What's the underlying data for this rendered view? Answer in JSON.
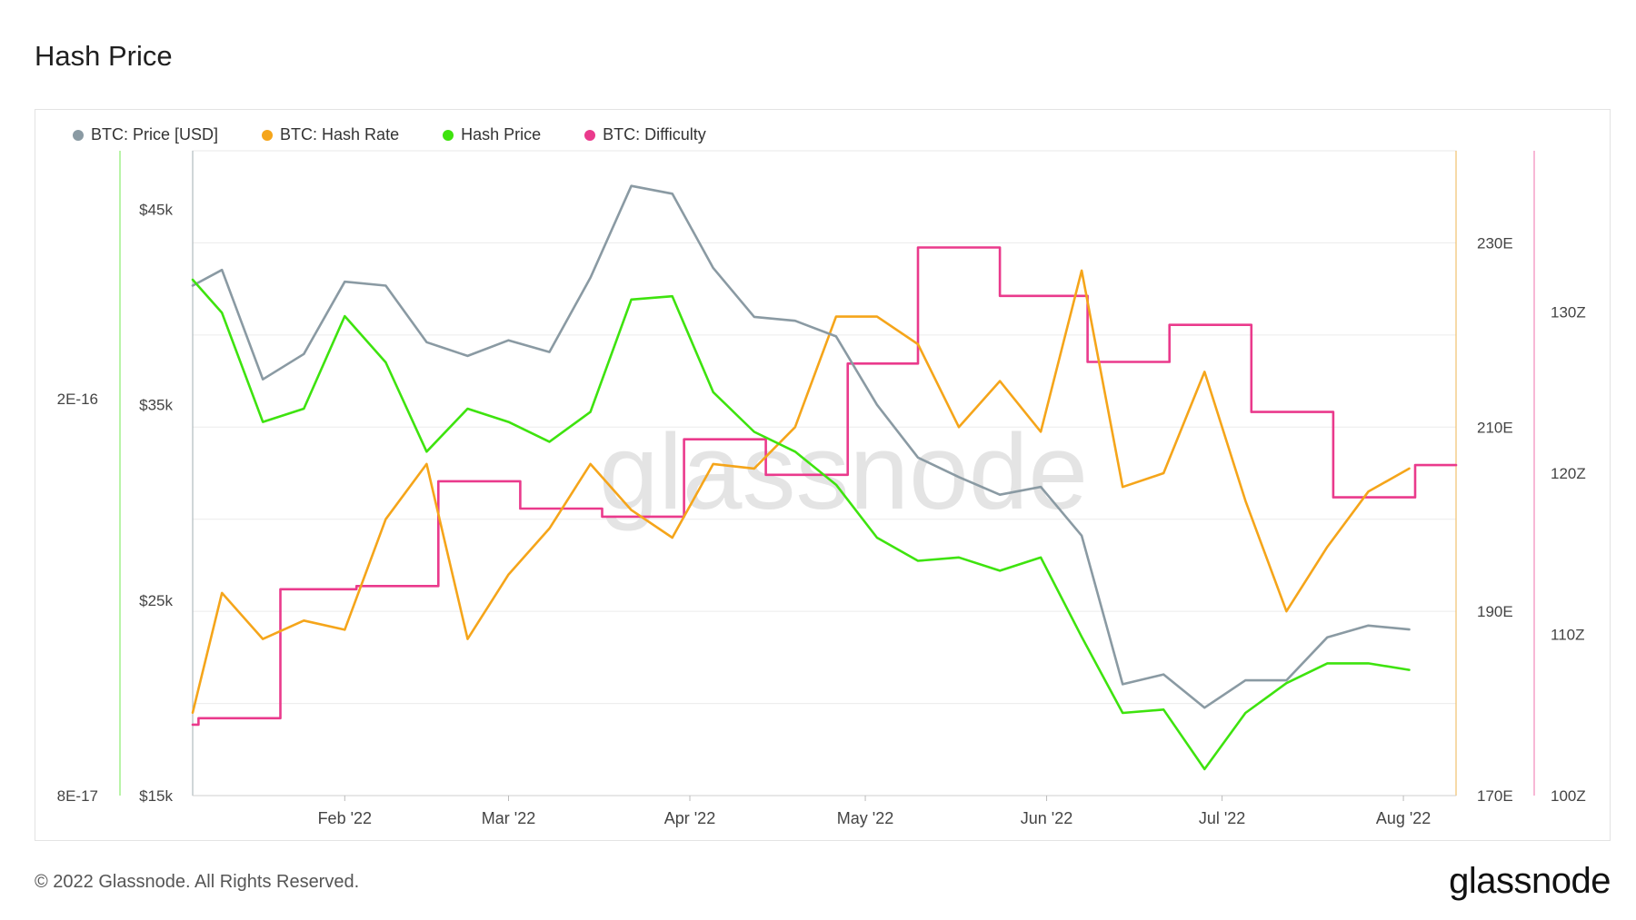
{
  "page": {
    "title": "Hash Price",
    "copyright": "© 2022 Glassnode. All Rights Reserved.",
    "logo": "glassnode",
    "watermark": "glassnode"
  },
  "chart_data": {
    "type": "line",
    "title": "Hash Price",
    "legend_position": "top-left",
    "grid": true,
    "x_ticks": [
      "Feb '22",
      "Mar '22",
      "Apr '22",
      "May '22",
      "Jun '22",
      "Jul '22",
      "Aug '22"
    ],
    "x_tick_dates": [
      "2022-02-01",
      "2022-03-01",
      "2022-04-01",
      "2022-05-01",
      "2022-06-01",
      "2022-07-01",
      "2022-08-01"
    ],
    "xlim": [
      "2022-01-06",
      "2022-08-10"
    ],
    "axes": {
      "price": {
        "ticks": [
          "$15k",
          "$25k",
          "$35k",
          "$45k"
        ],
        "tick_values": [
          15000,
          25000,
          35000,
          45000
        ],
        "range": [
          15000,
          48000
        ],
        "color": "#8a9aa3"
      },
      "hash_price": {
        "ticks": [
          "8E-17",
          "2E-16"
        ],
        "tick_values": [
          8e-17,
          2e-16
        ],
        "range": [
          8e-17,
          2.75e-16
        ],
        "color": "#3ee30e"
      },
      "hash_rate": {
        "ticks": [
          "170E",
          "190E",
          "210E",
          "230E"
        ],
        "tick_values": [
          170,
          190,
          210,
          230
        ],
        "range": [
          170,
          240
        ],
        "color": "#f5a51a"
      },
      "difficulty": {
        "ticks": [
          "100Z",
          "110Z",
          "120Z",
          "130Z"
        ],
        "tick_values": [
          100,
          110,
          120,
          130
        ],
        "range": [
          100,
          140
        ],
        "color": "#ea3a8c"
      }
    },
    "series": [
      {
        "name": "BTC: Price [USD]",
        "color": "#8a9aa3",
        "axis": "price",
        "step": false,
        "x": [
          "2022-01-06",
          "2022-01-11",
          "2022-01-18",
          "2022-01-25",
          "2022-02-01",
          "2022-02-08",
          "2022-02-15",
          "2022-02-22",
          "2022-03-01",
          "2022-03-08",
          "2022-03-15",
          "2022-03-22",
          "2022-03-29",
          "2022-04-05",
          "2022-04-12",
          "2022-04-19",
          "2022-04-26",
          "2022-05-03",
          "2022-05-10",
          "2022-05-17",
          "2022-05-24",
          "2022-05-31",
          "2022-06-07",
          "2022-06-14",
          "2022-06-21",
          "2022-06-28",
          "2022-07-05",
          "2022-07-12",
          "2022-07-19",
          "2022-07-26",
          "2022-08-02"
        ],
        "values": [
          41100,
          41900,
          36300,
          37600,
          41300,
          41100,
          38200,
          37500,
          38300,
          37700,
          41500,
          46200,
          45800,
          42000,
          39500,
          39300,
          38500,
          35000,
          32300,
          31300,
          30400,
          30800,
          28300,
          20700,
          21200,
          19500,
          20900,
          20900,
          23100,
          23700,
          23500
        ]
      },
      {
        "name": "BTC: Hash Rate",
        "color": "#f5a51a",
        "axis": "hash_rate",
        "step": false,
        "x": [
          "2022-01-06",
          "2022-01-11",
          "2022-01-18",
          "2022-01-25",
          "2022-02-01",
          "2022-02-08",
          "2022-02-15",
          "2022-02-22",
          "2022-03-01",
          "2022-03-08",
          "2022-03-15",
          "2022-03-22",
          "2022-03-29",
          "2022-04-05",
          "2022-04-12",
          "2022-04-19",
          "2022-04-26",
          "2022-05-03",
          "2022-05-10",
          "2022-05-17",
          "2022-05-24",
          "2022-05-31",
          "2022-06-07",
          "2022-06-14",
          "2022-06-21",
          "2022-06-28",
          "2022-07-05",
          "2022-07-12",
          "2022-07-19",
          "2022-07-26",
          "2022-08-02"
        ],
        "values": [
          179,
          192,
          187,
          189,
          188,
          200,
          206,
          187,
          194,
          199,
          206,
          201,
          198,
          206,
          205.5,
          210,
          222,
          222,
          219,
          210,
          215,
          209.5,
          227,
          203.5,
          205,
          216,
          202,
          190,
          197,
          203,
          205.5
        ]
      },
      {
        "name": "Hash Price",
        "color": "#3ee30e",
        "axis": "hash_price",
        "step": false,
        "x": [
          "2022-01-06",
          "2022-01-11",
          "2022-01-18",
          "2022-01-25",
          "2022-02-01",
          "2022-02-08",
          "2022-02-15",
          "2022-02-22",
          "2022-03-01",
          "2022-03-08",
          "2022-03-15",
          "2022-03-22",
          "2022-03-29",
          "2022-04-05",
          "2022-04-12",
          "2022-04-19",
          "2022-04-26",
          "2022-05-03",
          "2022-05-10",
          "2022-05-17",
          "2022-05-24",
          "2022-05-31",
          "2022-06-07",
          "2022-06-14",
          "2022-06-21",
          "2022-06-28",
          "2022-07-05",
          "2022-07-12",
          "2022-07-19",
          "2022-07-26",
          "2022-08-02"
        ],
        "values": [
          2.36e-16,
          2.26e-16,
          1.93e-16,
          1.97e-16,
          2.25e-16,
          2.11e-16,
          1.84e-16,
          1.97e-16,
          1.93e-16,
          1.87e-16,
          1.96e-16,
          2.3e-16,
          2.31e-16,
          2.02e-16,
          1.9e-16,
          1.84e-16,
          1.74e-16,
          1.58e-16,
          1.51e-16,
          1.52e-16,
          1.48e-16,
          1.52e-16,
          1.28e-16,
          1.05e-16,
          1.06e-16,
          8.8e-17,
          1.05e-16,
          1.14e-16,
          1.2e-16,
          1.2e-16,
          1.18e-16
        ]
      },
      {
        "name": "BTC: Difficulty",
        "color": "#ea3a8c",
        "axis": "difficulty",
        "step": true,
        "x": [
          "2022-01-06",
          "2022-01-07",
          "2022-01-21",
          "2022-02-03",
          "2022-02-17",
          "2022-03-03",
          "2022-03-17",
          "2022-03-31",
          "2022-04-14",
          "2022-04-28",
          "2022-05-10",
          "2022-05-24",
          "2022-06-08",
          "2022-06-22",
          "2022-07-06",
          "2022-07-20",
          "2022-08-03",
          "2022-08-10"
        ],
        "values": [
          104.4,
          104.8,
          112.8,
          113.0,
          119.5,
          117.8,
          117.3,
          122.1,
          119.9,
          126.8,
          134.0,
          131.0,
          126.9,
          129.2,
          123.8,
          118.5,
          120.5,
          120.5
        ]
      }
    ]
  }
}
